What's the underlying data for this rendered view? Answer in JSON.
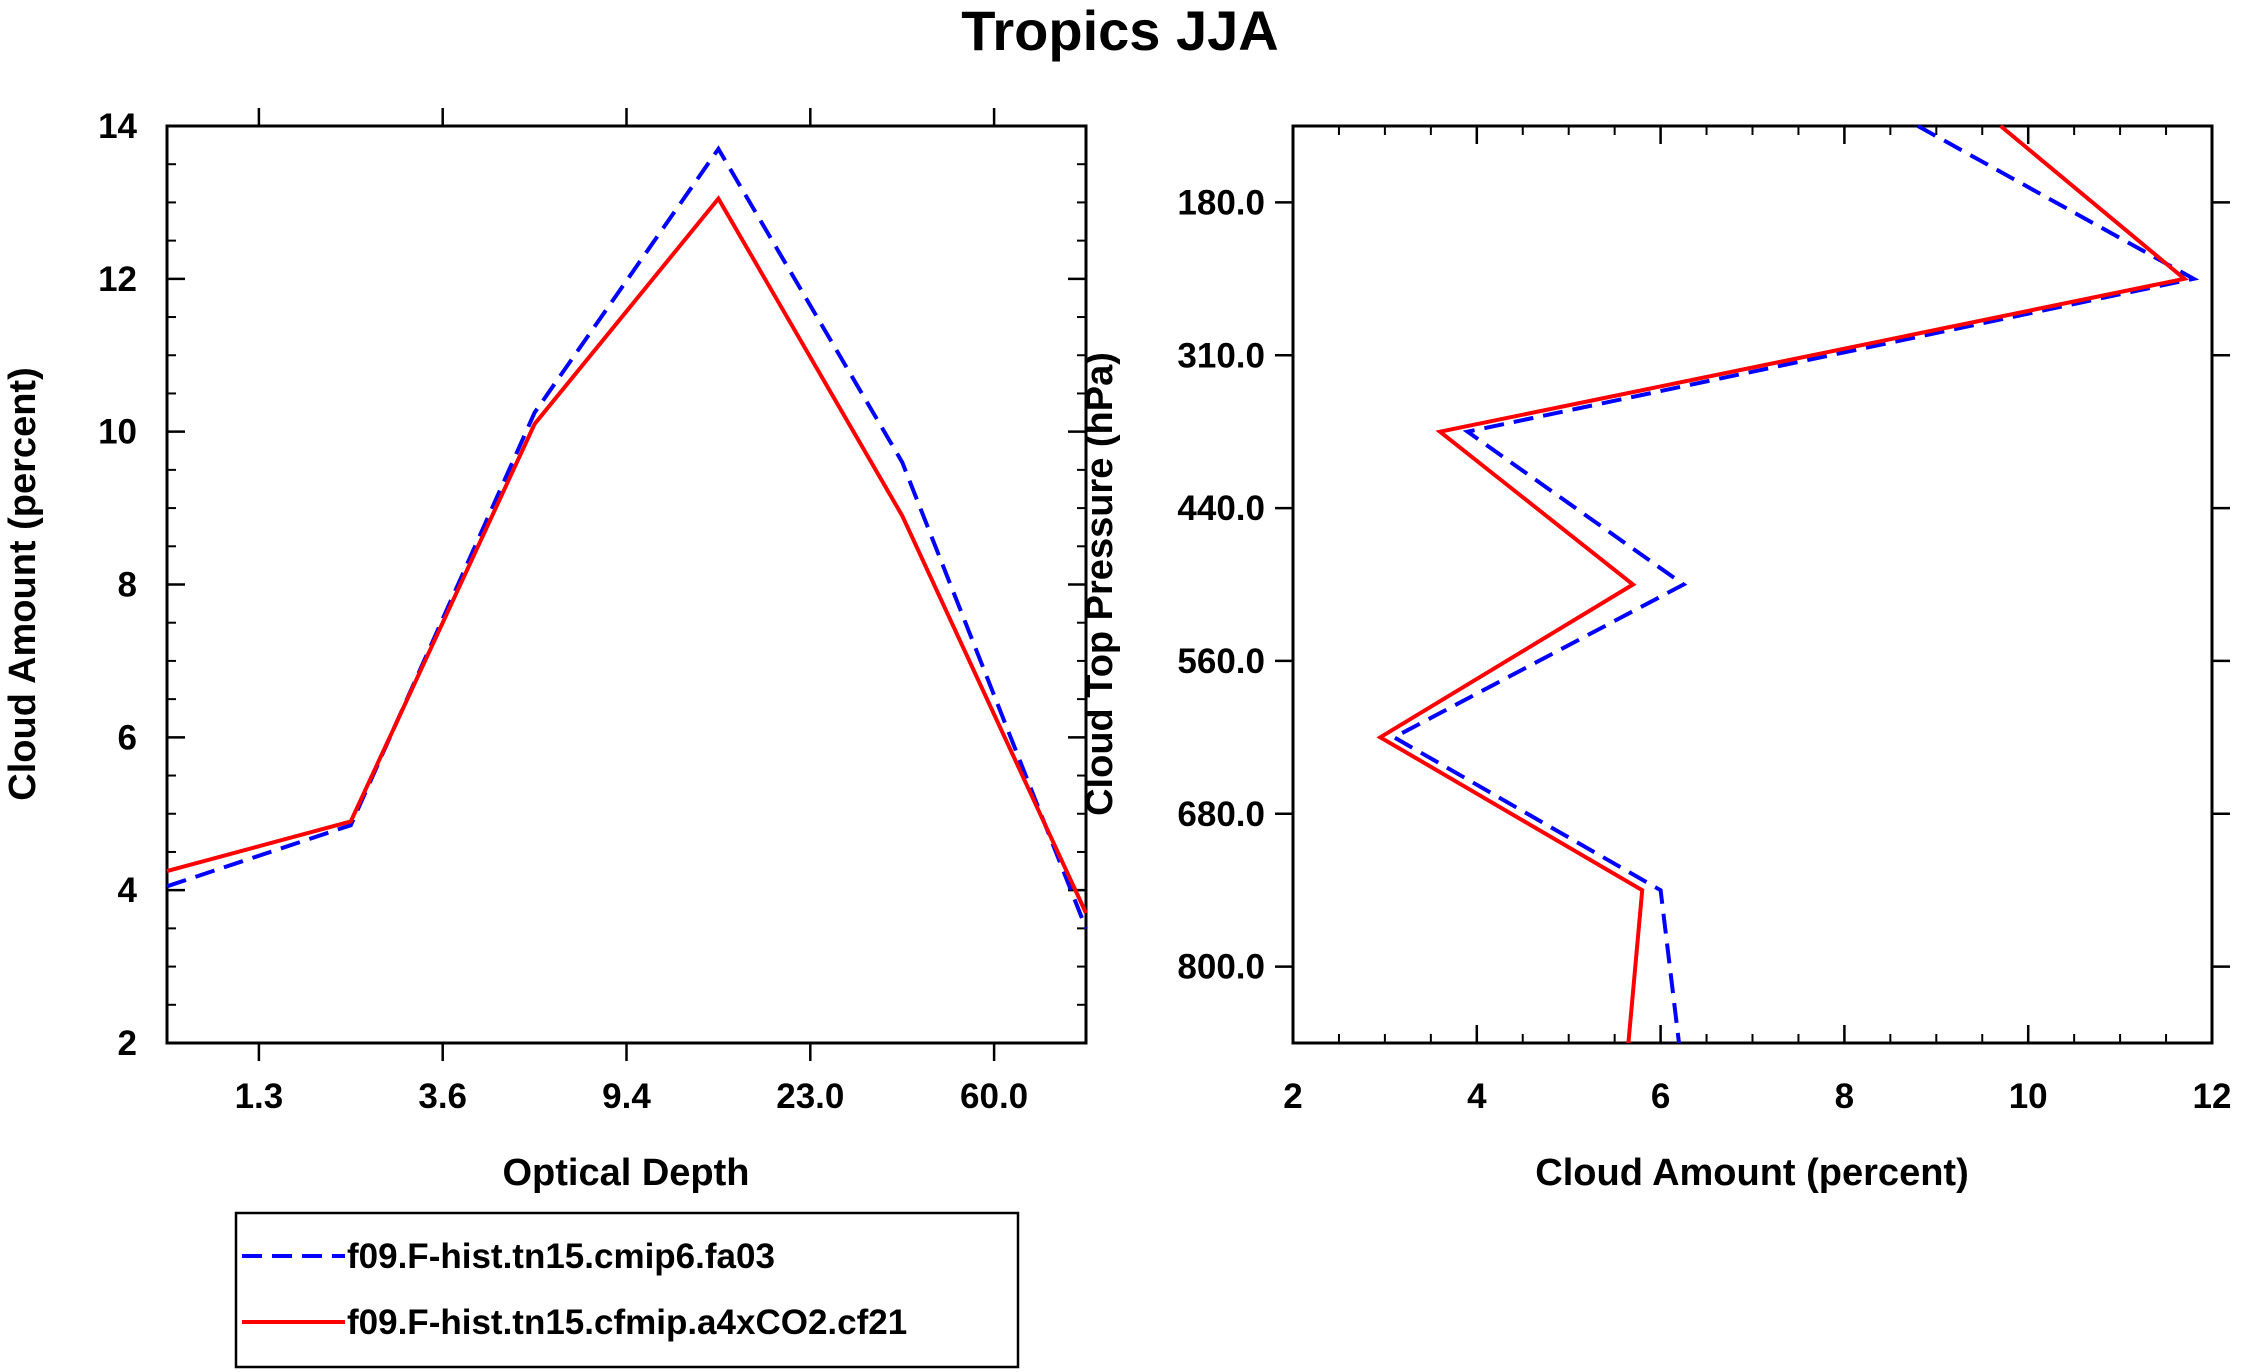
{
  "chart_data": [
    {
      "type": "line",
      "title": "Tropics JJA",
      "xlabel": "Optical Depth",
      "ylabel": "Cloud Amount (percent)",
      "x_tick_labels": [
        "1.3",
        "3.6",
        "9.4",
        "23.0",
        "60.0"
      ],
      "y_tick_labels": [
        "2",
        "4",
        "6",
        "8",
        "10",
        "12",
        "14"
      ],
      "ylim": [
        2,
        14
      ],
      "x": [
        0.5,
        2.5,
        4.5,
        6.5,
        8.5,
        10.5
      ],
      "xlim": [
        0.5,
        10.5
      ],
      "series": [
        {
          "name": "f09.F-hist.tn15.cmip6.fa03",
          "color": "#0000ff",
          "style": "dashed",
          "values": [
            4.05,
            4.85,
            10.25,
            13.7,
            9.6,
            3.5
          ]
        },
        {
          "name": "f09.F-hist.tn15.cfmip.a4xCO2.cf21",
          "color": "#ff0000",
          "style": "solid",
          "values": [
            4.25,
            4.9,
            10.1,
            13.05,
            8.9,
            3.7
          ]
        }
      ]
    },
    {
      "type": "line",
      "xlabel": "Cloud Amount (percent)",
      "ylabel": "Cloud Top Pressure (hPa)",
      "x_tick_labels": [
        "2",
        "4",
        "6",
        "8",
        "10",
        "12"
      ],
      "xlim": [
        2,
        12
      ],
      "y_tick_labels": [
        "180.0",
        "310.0",
        "440.0",
        "560.0",
        "680.0",
        "800.0"
      ],
      "y_tick_values": [
        1,
        3,
        5,
        7,
        9,
        11
      ],
      "ylim": [
        0,
        12
      ],
      "y_level_index": [
        0,
        2,
        4,
        6,
        8,
        10,
        12
      ],
      "series": [
        {
          "name": "f09.F-hist.tn15.cmip6.fa03",
          "color": "#0000ff",
          "style": "dashed",
          "values": [
            8.8,
            11.8,
            3.9,
            6.25,
            3.1,
            6.0,
            6.2
          ]
        },
        {
          "name": "f09.F-hist.tn15.cfmip.a4xCO2.cf21",
          "color": "#ff0000",
          "style": "solid",
          "values": [
            9.7,
            11.7,
            3.6,
            5.7,
            2.95,
            5.8,
            5.65
          ]
        }
      ]
    }
  ],
  "legend": {
    "entries": [
      {
        "label": "f09.F-hist.tn15.cmip6.fa03",
        "color": "#0000ff",
        "style": "dashed"
      },
      {
        "label": "f09.F-hist.tn15.cfmip.a4xCO2.cf21",
        "color": "#ff0000",
        "style": "solid"
      }
    ]
  }
}
